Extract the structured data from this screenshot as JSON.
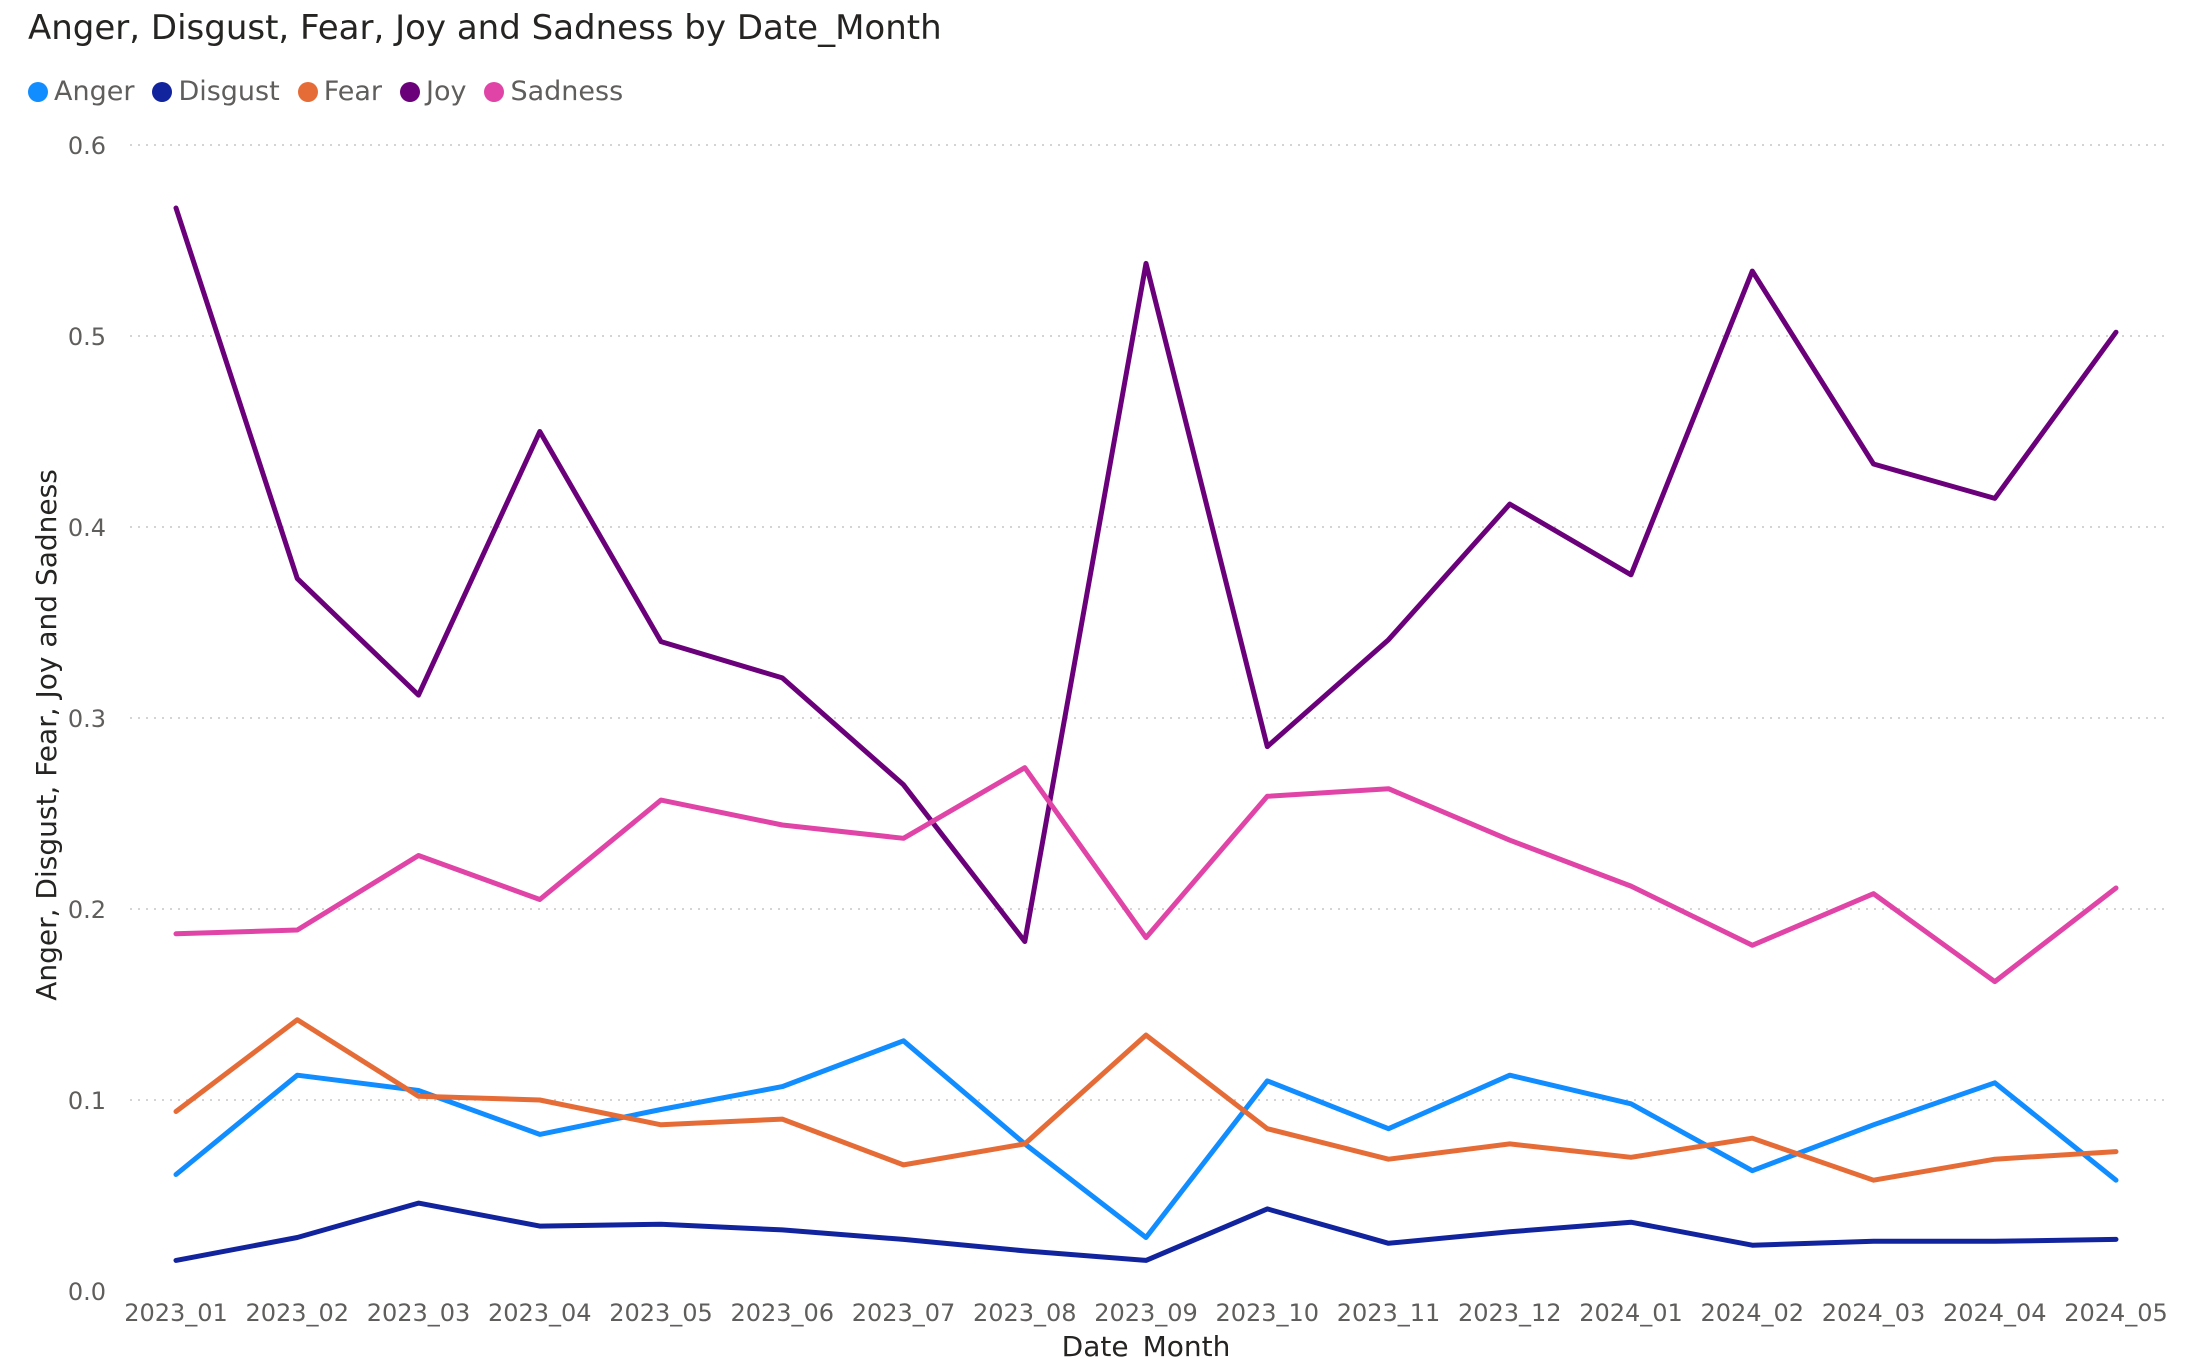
{
  "chart_data": {
    "type": "line",
    "title": "Anger, Disgust, Fear, Joy and Sadness by Date_Month",
    "xlabel": "Date_Month",
    "ylabel": "Anger, Disgust, Fear, Joy and Sadness",
    "ylim": [
      0,
      0.6
    ],
    "yticks": [
      "0.0",
      "0.1",
      "0.2",
      "0.3",
      "0.4",
      "0.5",
      "0.6"
    ],
    "grid": true,
    "legend_position": "top-left",
    "categories": [
      "2023_01",
      "2023_02",
      "2023_03",
      "2023_04",
      "2023_05",
      "2023_06",
      "2023_07",
      "2023_08",
      "2023_09",
      "2023_10",
      "2023_11",
      "2023_12",
      "2024_01",
      "2024_02",
      "2024_03",
      "2024_04",
      "2024_05"
    ],
    "series": [
      {
        "name": "Anger",
        "color": "#118DFF",
        "values": [
          0.061,
          0.113,
          0.105,
          0.082,
          0.095,
          0.107,
          0.131,
          0.077,
          0.028,
          0.11,
          0.085,
          0.113,
          0.098,
          0.063,
          0.087,
          0.109,
          0.058
        ]
      },
      {
        "name": "Disgust",
        "color": "#12239E",
        "values": [
          0.016,
          0.028,
          0.046,
          0.034,
          0.035,
          0.032,
          0.027,
          0.021,
          0.016,
          0.043,
          0.025,
          0.031,
          0.036,
          0.024,
          0.026,
          0.026,
          0.027
        ]
      },
      {
        "name": "Fear",
        "color": "#E66C37",
        "values": [
          0.094,
          0.142,
          0.102,
          0.1,
          0.087,
          0.09,
          0.066,
          0.077,
          0.134,
          0.085,
          0.069,
          0.077,
          0.07,
          0.08,
          0.058,
          0.069,
          0.073
        ]
      },
      {
        "name": "Joy",
        "color": "#6B007B",
        "values": [
          0.567,
          0.373,
          0.312,
          0.45,
          0.34,
          0.321,
          0.265,
          0.183,
          0.538,
          0.285,
          0.341,
          0.412,
          0.375,
          0.534,
          0.433,
          0.415,
          0.502
        ]
      },
      {
        "name": "Sadness",
        "color": "#E044A7",
        "values": [
          0.187,
          0.189,
          0.228,
          0.205,
          0.257,
          0.244,
          0.237,
          0.274,
          0.185,
          0.259,
          0.263,
          0.236,
          0.212,
          0.181,
          0.208,
          0.162,
          0.211
        ]
      }
    ]
  }
}
